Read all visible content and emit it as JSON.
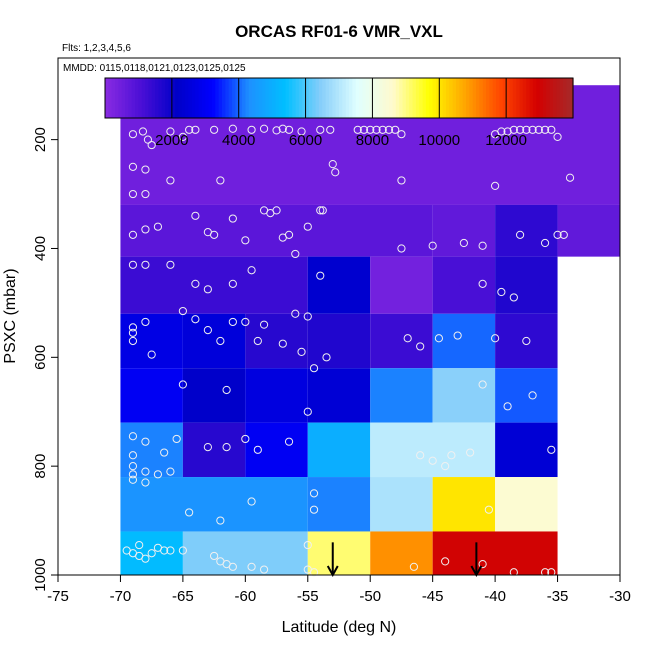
{
  "chart_data": {
    "type": "heatmap",
    "title": "ORCAS RF01-6 VMR_VXL",
    "subtitle_flights": "Flts: 1,2,3,4,5,6",
    "subtitle_dates": "MMDD: 0115,0118,0121,0123,0125,0125",
    "xlabel": "Latitude (deg N)",
    "ylabel": "PSXC (mbar)",
    "xlim": [
      -75,
      -30
    ],
    "ylim": [
      1000,
      50
    ],
    "x_ticks": [
      -75,
      -70,
      -65,
      -60,
      -55,
      -50,
      -45,
      -40,
      -35,
      -30
    ],
    "y_ticks": [
      200,
      400,
      600,
      800,
      1000
    ],
    "colorbar": {
      "min": 0,
      "max": 14000,
      "ticks": [
        2000,
        4000,
        6000,
        8000,
        10000,
        12000
      ],
      "colors": [
        "#8a2be2",
        "#4b0fd6",
        "#0000c8",
        "#0000ff",
        "#1e90ff",
        "#00bfff",
        "#87cefa",
        "#e0ffff",
        "#fffacd",
        "#ffff00",
        "#ffa500",
        "#ff4500",
        "#d40000",
        "#a52a2a"
      ]
    },
    "x_edges": [
      -70,
      -65,
      -60,
      -55,
      -50,
      -45,
      -40,
      -35,
      -30
    ],
    "p_edges": [
      100,
      150,
      200,
      250,
      300,
      350,
      400,
      450,
      500,
      550,
      600,
      650,
      700,
      750,
      800,
      850,
      900,
      950,
      1000
    ],
    "cells": [
      {
        "x0": -70,
        "x1": -30,
        "p0": 100,
        "p1": 320,
        "value": 450
      },
      {
        "x0": -70,
        "x1": -45,
        "p0": 320,
        "p1": 415,
        "value": 800
      },
      {
        "x0": -45,
        "x1": -40,
        "p0": 320,
        "p1": 415,
        "value": 700
      },
      {
        "x0": -40,
        "x1": -35,
        "p0": 320,
        "p1": 415,
        "value": 1500
      },
      {
        "x0": -35,
        "x1": -30,
        "p0": 320,
        "p1": 415,
        "value": 700
      },
      {
        "x0": -70,
        "x1": -55,
        "p0": 415,
        "p1": 520,
        "value": 1300
      },
      {
        "x0": -55,
        "x1": -50,
        "p0": 415,
        "p1": 520,
        "value": 2300
      },
      {
        "x0": -50,
        "x1": -45,
        "p0": 415,
        "p1": 520,
        "value": 400
      },
      {
        "x0": -45,
        "x1": -40,
        "p0": 415,
        "p1": 520,
        "value": 1100
      },
      {
        "x0": -40,
        "x1": -35,
        "p0": 415,
        "p1": 520,
        "value": 1700
      },
      {
        "x0": -70,
        "x1": -65,
        "p0": 520,
        "p1": 620,
        "value": 2700
      },
      {
        "x0": -65,
        "x1": -60,
        "p0": 520,
        "p1": 620,
        "value": 2500
      },
      {
        "x0": -60,
        "x1": -55,
        "p0": 520,
        "p1": 620,
        "value": 1600
      },
      {
        "x0": -55,
        "x1": -50,
        "p0": 520,
        "p1": 620,
        "value": 1700
      },
      {
        "x0": -50,
        "x1": -45,
        "p0": 520,
        "p1": 620,
        "value": 1300
      },
      {
        "x0": -45,
        "x1": -40,
        "p0": 520,
        "p1": 620,
        "value": 4000
      },
      {
        "x0": -40,
        "x1": -35,
        "p0": 520,
        "p1": 620,
        "value": 1500
      },
      {
        "x0": -70,
        "x1": -65,
        "p0": 620,
        "p1": 720,
        "value": 3000
      },
      {
        "x0": -65,
        "x1": -60,
        "p0": 620,
        "p1": 720,
        "value": 2200
      },
      {
        "x0": -60,
        "x1": -55,
        "p0": 620,
        "p1": 720,
        "value": 2600
      },
      {
        "x0": -55,
        "x1": -50,
        "p0": 620,
        "p1": 720,
        "value": 2400
      },
      {
        "x0": -50,
        "x1": -45,
        "p0": 620,
        "p1": 720,
        "value": 4200
      },
      {
        "x0": -45,
        "x1": -40,
        "p0": 620,
        "p1": 720,
        "value": 6500
      },
      {
        "x0": -40,
        "x1": -35,
        "p0": 620,
        "p1": 720,
        "value": 3900
      },
      {
        "x0": -70,
        "x1": -65,
        "p0": 720,
        "p1": 820,
        "value": 4200
      },
      {
        "x0": -65,
        "x1": -60,
        "p0": 720,
        "p1": 820,
        "value": 1600
      },
      {
        "x0": -60,
        "x1": -55,
        "p0": 720,
        "p1": 820,
        "value": 3000
      },
      {
        "x0": -55,
        "x1": -50,
        "p0": 720,
        "p1": 820,
        "value": 5000
      },
      {
        "x0": -50,
        "x1": -40,
        "p0": 720,
        "p1": 820,
        "value": 7100
      },
      {
        "x0": -40,
        "x1": -35,
        "p0": 720,
        "p1": 820,
        "value": 2400
      },
      {
        "x0": -70,
        "x1": -55,
        "p0": 820,
        "p1": 920,
        "value": 4400
      },
      {
        "x0": -55,
        "x1": -50,
        "p0": 820,
        "p1": 920,
        "value": 4200
      },
      {
        "x0": -50,
        "x1": -45,
        "p0": 820,
        "p1": 920,
        "value": 6900
      },
      {
        "x0": -45,
        "x1": -40,
        "p0": 820,
        "p1": 920,
        "value": 10000
      },
      {
        "x0": -40,
        "x1": -35,
        "p0": 820,
        "p1": 920,
        "value": 8500
      },
      {
        "x0": -70,
        "x1": -65,
        "p0": 920,
        "p1": 1000,
        "value": 5300
      },
      {
        "x0": -65,
        "x1": -55,
        "p0": 920,
        "p1": 1000,
        "value": 6400
      },
      {
        "x0": -55,
        "x1": -50,
        "p0": 920,
        "p1": 1000,
        "value": 9100
      },
      {
        "x0": -50,
        "x1": -45,
        "p0": 920,
        "p1": 1000,
        "value": 11000
      },
      {
        "x0": -45,
        "x1": -35,
        "p0": 920,
        "p1": 1000,
        "value": 13000
      }
    ],
    "markers": [
      [
        -69,
        190
      ],
      [
        -68.2,
        185
      ],
      [
        -67.8,
        200
      ],
      [
        -67.5,
        210
      ],
      [
        -66,
        185
      ],
      [
        -65,
        195
      ],
      [
        -64.5,
        182
      ],
      [
        -64,
        182
      ],
      [
        -62.5,
        182
      ],
      [
        -61,
        180
      ],
      [
        -59.5,
        182
      ],
      [
        -58.5,
        180
      ],
      [
        -57.5,
        183
      ],
      [
        -57,
        180
      ],
      [
        -56.5,
        182
      ],
      [
        -55.5,
        185
      ],
      [
        -54,
        182
      ],
      [
        -53.2,
        182
      ],
      [
        -51,
        182
      ],
      [
        -50.5,
        182
      ],
      [
        -50,
        182
      ],
      [
        -49.5,
        182
      ],
      [
        -49,
        182
      ],
      [
        -48.5,
        182
      ],
      [
        -48,
        182
      ],
      [
        -47.5,
        190
      ],
      [
        -40,
        190
      ],
      [
        -39.5,
        185
      ],
      [
        -39,
        185
      ],
      [
        -38.5,
        182
      ],
      [
        -38,
        182
      ],
      [
        -37.5,
        182
      ],
      [
        -37,
        182
      ],
      [
        -36.5,
        182
      ],
      [
        -36,
        182
      ],
      [
        -35.5,
        182
      ],
      [
        -35,
        195
      ],
      [
        -69,
        250
      ],
      [
        -68,
        255
      ],
      [
        -69,
        300
      ],
      [
        -68,
        300
      ],
      [
        -66,
        275
      ],
      [
        -62,
        275
      ],
      [
        -53,
        245
      ],
      [
        -52.8,
        260
      ],
      [
        -47.5,
        275
      ],
      [
        -40,
        285
      ],
      [
        -34,
        270
      ],
      [
        -68,
        365
      ],
      [
        -67,
        360
      ],
      [
        -69,
        375
      ],
      [
        -64,
        340
      ],
      [
        -63,
        370
      ],
      [
        -62.5,
        375
      ],
      [
        -61,
        345
      ],
      [
        -60,
        385
      ],
      [
        -58.5,
        330
      ],
      [
        -58,
        335
      ],
      [
        -57.5,
        330
      ],
      [
        -57,
        380
      ],
      [
        -56.5,
        375
      ],
      [
        -56,
        410
      ],
      [
        -55,
        360
      ],
      [
        -54,
        330
      ],
      [
        -53.8,
        330
      ],
      [
        -47.5,
        400
      ],
      [
        -45,
        395
      ],
      [
        -42.5,
        390
      ],
      [
        -41,
        395
      ],
      [
        -38,
        375
      ],
      [
        -36,
        390
      ],
      [
        -35,
        375
      ],
      [
        -34.5,
        375
      ],
      [
        -69,
        430
      ],
      [
        -68,
        430
      ],
      [
        -66,
        430
      ],
      [
        -64,
        465
      ],
      [
        -63,
        475
      ],
      [
        -61,
        465
      ],
      [
        -59.5,
        440
      ],
      [
        -54,
        450
      ],
      [
        -39.5,
        480
      ],
      [
        -38.5,
        490
      ],
      [
        -41,
        465
      ],
      [
        -69,
        545
      ],
      [
        -69,
        555
      ],
      [
        -68,
        535
      ],
      [
        -69,
        570
      ],
      [
        -67.5,
        595
      ],
      [
        -65,
        515
      ],
      [
        -64,
        530
      ],
      [
        -63,
        550
      ],
      [
        -62,
        570
      ],
      [
        -61,
        535
      ],
      [
        -60,
        535
      ],
      [
        -59,
        570
      ],
      [
        -58.5,
        540
      ],
      [
        -57,
        575
      ],
      [
        -56,
        520
      ],
      [
        -55,
        525
      ],
      [
        -55.5,
        590
      ],
      [
        -53.5,
        600
      ],
      [
        -47,
        565
      ],
      [
        -46,
        580
      ],
      [
        -44.5,
        565
      ],
      [
        -43,
        560
      ],
      [
        -40,
        565
      ],
      [
        -37.5,
        570
      ],
      [
        -54.5,
        620
      ],
      [
        -55,
        700
      ],
      [
        -65,
        650
      ],
      [
        -61.5,
        660
      ],
      [
        -41,
        650
      ],
      [
        -39,
        690
      ],
      [
        -37,
        670
      ],
      [
        -69,
        745
      ],
      [
        -68,
        755
      ],
      [
        -69,
        780
      ],
      [
        -69,
        800
      ],
      [
        -69,
        815
      ],
      [
        -68,
        810
      ],
      [
        -67,
        815
      ],
      [
        -66,
        810
      ],
      [
        -66.5,
        775
      ],
      [
        -65.5,
        750
      ],
      [
        -63,
        765
      ],
      [
        -61.5,
        765
      ],
      [
        -60,
        750
      ],
      [
        -59,
        770
      ],
      [
        -56.5,
        755
      ],
      [
        -46,
        780
      ],
      [
        -45,
        790
      ],
      [
        -44,
        800
      ],
      [
        -43.5,
        780
      ],
      [
        -42,
        775
      ],
      [
        -35.5,
        770
      ],
      [
        -69,
        825
      ],
      [
        -68,
        830
      ],
      [
        -62,
        900
      ],
      [
        -64.5,
        885
      ],
      [
        -59.5,
        865
      ],
      [
        -54.5,
        850
      ],
      [
        -54.5,
        880
      ],
      [
        -40.5,
        880
      ],
      [
        -69.5,
        955
      ],
      [
        -69,
        960
      ],
      [
        -68.5,
        965
      ],
      [
        -68,
        970
      ],
      [
        -67.5,
        960
      ],
      [
        -68.5,
        945
      ],
      [
        -67,
        950
      ],
      [
        -66.5,
        955
      ],
      [
        -66,
        955
      ],
      [
        -65,
        955
      ],
      [
        -62.5,
        965
      ],
      [
        -62,
        975
      ],
      [
        -61.5,
        980
      ],
      [
        -61,
        985
      ],
      [
        -59.5,
        985
      ],
      [
        -58.5,
        990
      ],
      [
        -55,
        990
      ],
      [
        -54.5,
        995
      ],
      [
        -55,
        945
      ],
      [
        -46.5,
        985
      ],
      [
        -44,
        975
      ],
      [
        -41,
        980
      ],
      [
        -38.5,
        995
      ],
      [
        -36,
        995
      ],
      [
        -35.5,
        995
      ]
    ],
    "arrows": [
      {
        "x": -53,
        "p_from": 940,
        "p_to": 1000
      },
      {
        "x": -41.5,
        "p_from": 940,
        "p_to": 1000
      }
    ]
  }
}
